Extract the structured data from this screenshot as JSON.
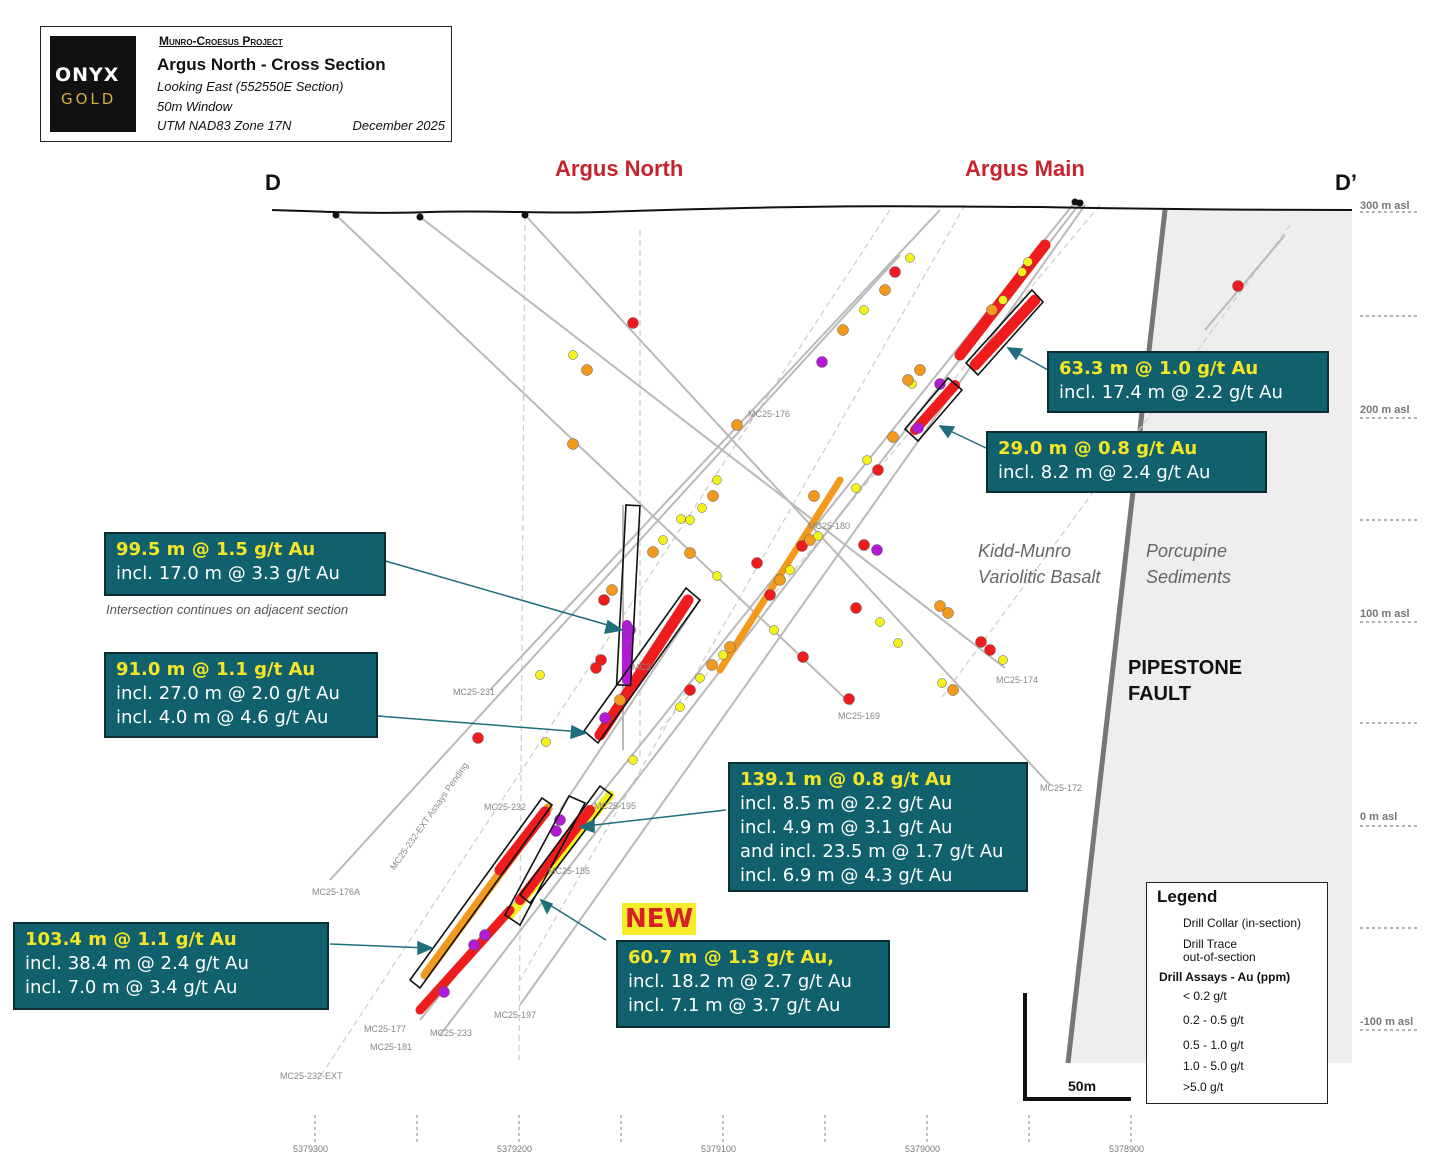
{
  "title_block": {
    "logo_line1": "ONYX",
    "logo_line2": "GOLD",
    "project": "Munro-Croesus Project",
    "title": "Argus North - Cross Section",
    "line1": "Looking East (552550E Section)",
    "line2": "50m Window",
    "line3": "UTM NAD83 Zone 17N",
    "date": "December 2025"
  },
  "section": {
    "start": "D",
    "end": "D’"
  },
  "targets": {
    "north": "Argus North",
    "main": "Argus Main"
  },
  "elevations": [
    "300 m asl",
    "200 m asl",
    "100 m asl",
    "0 m asl",
    "-100 m asl"
  ],
  "eastings": [
    "5379300",
    "5379200",
    "5379100",
    "5379000",
    "5378900"
  ],
  "rock_units": {
    "basalt_line1": "Kidd-Munro",
    "basalt_line2": "Variolitic Basalt",
    "sediments_line1": "Porcupine",
    "sediments_line2": "Sediments",
    "fault_line1": "PIPESTONE",
    "fault_line2": "FAULT"
  },
  "callouts": {
    "c1": {
      "main": "63.3 m @ 1.0 g/t Au",
      "sub1": "incl. 17.4 m @ 2.2 g/t Au"
    },
    "c2": {
      "main": "29.0 m @ 0.8 g/t Au",
      "sub1": "incl. 8.2 m @ 2.4 g/t Au"
    },
    "c3": {
      "main": "99.5 m @ 1.5 g/t Au",
      "sub1": "incl. 17.0 m @ 3.3 g/t Au",
      "note": "Intersection continues on adjacent section"
    },
    "c4": {
      "main": "91.0 m @ 1.1 g/t Au",
      "sub1": "incl. 27.0 m @ 2.0 g/t Au",
      "sub2": "incl. 4.0 m @ 4.6 g/t Au"
    },
    "c5": {
      "main": "139.1 m @ 0.8 g/t Au",
      "sub1": "incl. 8.5 m @ 2.2 g/t Au",
      "sub2": "incl. 4.9 m @ 3.1 g/t Au",
      "sub3": "and incl. 23.5 m @ 1.7 g/t Au",
      "sub4": "incl. 6.9 m @ 4.3 g/t Au"
    },
    "c6": {
      "main": "103.4 m @ 1.1 g/t Au",
      "sub1": "incl. 38.4 m @ 2.4 g/t Au",
      "sub2": "incl. 7.0 m @ 3.4 g/t Au"
    },
    "c7": {
      "badge": "NEW",
      "main": "60.7 m @ 1.3 g/t Au,",
      "sub1": "incl. 18.2 m @ 2.7 g/t Au",
      "sub2": "incl. 7.1 m @ 3.7 g/t Au"
    }
  },
  "holes": [
    "MC25-176",
    "MC25-180",
    "MC25-174",
    "MC25-169",
    "MC25-172",
    "MC25-231",
    "MC25-176A",
    "MC25-232",
    "MC25-195",
    "MC25-185",
    "MC25-197",
    "MC25-177",
    "MC25-181",
    "MC25-233",
    "MC25-232-EXT",
    "MC25-232-EXT Assays Pending",
    "MC2"
  ],
  "legend": {
    "title": "Legend",
    "collar": "Drill Collar (in-section)",
    "trace1": "Drill Trace",
    "trace2": "out-of-section",
    "assays_title": "Drill Assays - Au (ppm)",
    "bins": [
      "< 0.2 g/t",
      "0.2 - 0.5 g/t",
      "0.5 - 1.0 g/t",
      "1.0 - 5.0 g/t",
      ">5.0 g/t"
    ]
  },
  "scale_bar": "50m",
  "colors": {
    "callout_bg": "#11606d",
    "highlight": "#f4e526",
    "target": "#c8232c",
    "sediments": "#eeeeee",
    "bin_low": "#f4f21d",
    "bin_mid": "#f29a1d",
    "bin_high": "#ee1c1c",
    "bin_top": "#b21ad6"
  }
}
